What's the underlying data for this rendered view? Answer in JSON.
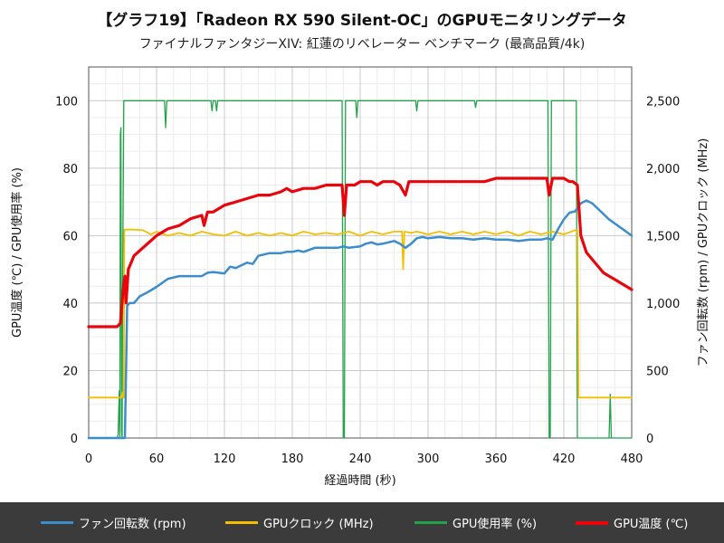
{
  "chart_data": {
    "type": "line",
    "title": "【グラフ19】「Radeon RX 590 Silent-OC」のGPUモニタリングデータ",
    "subtitle": "ファイナルファンタジーXIV: 紅蓮のリベレーター ベンチマーク (最高品質/4k)",
    "xlabel": "経過時間 (秒)",
    "ylabel_left": "GPU温度 (℃) / GPU使用率 (%)",
    "ylabel_right": "ファン回転数 (rpm) / GPUクロック (MHz)",
    "xlim": [
      0,
      480
    ],
    "ylim_left": [
      0,
      110
    ],
    "ylim_right": [
      0,
      2750
    ],
    "x_ticks": [
      0,
      60,
      120,
      180,
      240,
      300,
      360,
      420,
      480
    ],
    "x_tick_labels": [
      "0",
      "60",
      "120",
      "180",
      "240",
      "300",
      "360",
      "420",
      "480"
    ],
    "y_left_ticks": [
      0,
      20,
      40,
      60,
      80,
      100
    ],
    "y_left_tick_labels": [
      "0",
      "20",
      "40",
      "60",
      "80",
      "100"
    ],
    "y_right_ticks": [
      0,
      500,
      1000,
      1500,
      2000,
      2500
    ],
    "y_right_tick_labels": [
      "0",
      "500",
      "1,000",
      "1,500",
      "2,000",
      "2,500"
    ],
    "grid": true,
    "legend_position": "bottom",
    "series": [
      {
        "name": "ファン回転数 (rpm)",
        "axis": "right",
        "color": "#3c8dcc",
        "points": [
          [
            0,
            0
          ],
          [
            32,
            0
          ],
          [
            33,
            500
          ],
          [
            34,
            980
          ],
          [
            36,
            1000
          ],
          [
            40,
            1000
          ],
          [
            45,
            1050
          ],
          [
            52,
            1080
          ],
          [
            60,
            1120
          ],
          [
            70,
            1180
          ],
          [
            80,
            1200
          ],
          [
            100,
            1200
          ],
          [
            105,
            1225
          ],
          [
            110,
            1230
          ],
          [
            120,
            1220
          ],
          [
            125,
            1270
          ],
          [
            130,
            1260
          ],
          [
            140,
            1300
          ],
          [
            145,
            1290
          ],
          [
            150,
            1350
          ],
          [
            160,
            1370
          ],
          [
            170,
            1370
          ],
          [
            175,
            1380
          ],
          [
            180,
            1380
          ],
          [
            185,
            1390
          ],
          [
            190,
            1380
          ],
          [
            200,
            1410
          ],
          [
            210,
            1410
          ],
          [
            220,
            1410
          ],
          [
            225,
            1420
          ],
          [
            230,
            1410
          ],
          [
            240,
            1420
          ],
          [
            245,
            1440
          ],
          [
            250,
            1450
          ],
          [
            255,
            1435
          ],
          [
            260,
            1440
          ],
          [
            270,
            1460
          ],
          [
            275,
            1440
          ],
          [
            280,
            1410
          ],
          [
            285,
            1440
          ],
          [
            290,
            1480
          ],
          [
            295,
            1490
          ],
          [
            300,
            1480
          ],
          [
            310,
            1490
          ],
          [
            320,
            1480
          ],
          [
            330,
            1480
          ],
          [
            340,
            1470
          ],
          [
            350,
            1480
          ],
          [
            360,
            1470
          ],
          [
            370,
            1470
          ],
          [
            380,
            1460
          ],
          [
            390,
            1470
          ],
          [
            400,
            1470
          ],
          [
            405,
            1480
          ],
          [
            410,
            1470
          ],
          [
            415,
            1550
          ],
          [
            420,
            1620
          ],
          [
            425,
            1670
          ],
          [
            430,
            1680
          ],
          [
            435,
            1740
          ],
          [
            440,
            1760
          ],
          [
            445,
            1740
          ],
          [
            450,
            1700
          ],
          [
            455,
            1660
          ],
          [
            460,
            1620
          ],
          [
            465,
            1590
          ],
          [
            470,
            1560
          ],
          [
            475,
            1530
          ],
          [
            480,
            1500
          ]
        ]
      },
      {
        "name": "GPUクロック (MHz)",
        "axis": "right",
        "color": "#f3bf00",
        "points": [
          [
            0,
            300
          ],
          [
            29,
            300
          ],
          [
            30,
            340
          ],
          [
            31,
            300
          ],
          [
            31.5,
            1545
          ],
          [
            40,
            1545
          ],
          [
            48,
            1540
          ],
          [
            55,
            1510
          ],
          [
            60,
            1530
          ],
          [
            70,
            1500
          ],
          [
            80,
            1520
          ],
          [
            90,
            1500
          ],
          [
            100,
            1530
          ],
          [
            110,
            1510
          ],
          [
            120,
            1500
          ],
          [
            130,
            1530
          ],
          [
            140,
            1500
          ],
          [
            150,
            1520
          ],
          [
            160,
            1500
          ],
          [
            170,
            1520
          ],
          [
            180,
            1500
          ],
          [
            190,
            1530
          ],
          [
            200,
            1510
          ],
          [
            210,
            1520
          ],
          [
            220,
            1510
          ],
          [
            230,
            1530
          ],
          [
            240,
            1500
          ],
          [
            250,
            1530
          ],
          [
            260,
            1510
          ],
          [
            270,
            1530
          ],
          [
            277,
            1530
          ],
          [
            278,
            1250
          ],
          [
            279,
            1530
          ],
          [
            285,
            1520
          ],
          [
            290,
            1530
          ],
          [
            300,
            1510
          ],
          [
            310,
            1530
          ],
          [
            320,
            1510
          ],
          [
            330,
            1530
          ],
          [
            340,
            1510
          ],
          [
            350,
            1530
          ],
          [
            360,
            1510
          ],
          [
            370,
            1530
          ],
          [
            380,
            1500
          ],
          [
            390,
            1530
          ],
          [
            400,
            1510
          ],
          [
            410,
            1530
          ],
          [
            420,
            1510
          ],
          [
            430,
            1540
          ],
          [
            432,
            1540
          ],
          [
            433,
            300
          ],
          [
            480,
            300
          ]
        ]
      },
      {
        "name": "GPU使用率 (%)",
        "axis": "left",
        "color": "#22a34a",
        "points": [
          [
            0,
            0
          ],
          [
            25,
            0
          ],
          [
            26,
            1
          ],
          [
            27,
            14
          ],
          [
            27.5,
            0
          ],
          [
            28,
            90
          ],
          [
            28.5,
            92
          ],
          [
            29,
            2
          ],
          [
            29.5,
            0
          ],
          [
            30,
            45
          ],
          [
            31,
            100
          ],
          [
            67,
            100
          ],
          [
            68,
            92
          ],
          [
            69,
            100
          ],
          [
            108,
            100
          ],
          [
            109,
            97
          ],
          [
            110,
            100
          ],
          [
            112,
            100
          ],
          [
            113,
            97
          ],
          [
            114,
            100
          ],
          [
            224,
            100
          ],
          [
            225,
            0
          ],
          [
            226,
            0
          ],
          [
            227,
            100
          ],
          [
            236,
            100
          ],
          [
            237,
            95
          ],
          [
            238,
            100
          ],
          [
            289,
            100
          ],
          [
            290,
            97
          ],
          [
            291,
            100
          ],
          [
            341,
            100
          ],
          [
            342,
            98
          ],
          [
            343,
            100
          ],
          [
            406,
            100
          ],
          [
            407,
            0
          ],
          [
            408,
            0
          ],
          [
            409,
            100
          ],
          [
            431,
            100
          ],
          [
            432,
            0
          ],
          [
            460,
            0
          ],
          [
            461,
            13
          ],
          [
            462,
            0
          ],
          [
            480,
            0
          ]
        ]
      },
      {
        "name": "GPU温度 (℃)",
        "axis": "left",
        "color": "#e8050b",
        "points": [
          [
            0,
            33
          ],
          [
            25,
            33
          ],
          [
            28,
            34
          ],
          [
            31,
            46
          ],
          [
            32,
            48
          ],
          [
            33,
            40
          ],
          [
            35,
            50
          ],
          [
            40,
            54
          ],
          [
            50,
            57
          ],
          [
            60,
            60
          ],
          [
            70,
            62
          ],
          [
            80,
            63
          ],
          [
            90,
            65
          ],
          [
            100,
            66
          ],
          [
            102,
            63
          ],
          [
            105,
            67
          ],
          [
            110,
            67
          ],
          [
            115,
            68
          ],
          [
            120,
            69
          ],
          [
            130,
            70
          ],
          [
            140,
            71
          ],
          [
            150,
            72
          ],
          [
            160,
            72
          ],
          [
            170,
            73
          ],
          [
            175,
            74
          ],
          [
            180,
            73
          ],
          [
            190,
            74
          ],
          [
            200,
            74
          ],
          [
            210,
            75
          ],
          [
            220,
            75
          ],
          [
            224,
            75
          ],
          [
            226,
            66
          ],
          [
            228,
            75
          ],
          [
            235,
            75
          ],
          [
            240,
            76
          ],
          [
            250,
            76
          ],
          [
            255,
            75
          ],
          [
            260,
            76
          ],
          [
            270,
            76
          ],
          [
            275,
            75
          ],
          [
            280,
            72
          ],
          [
            283,
            76
          ],
          [
            290,
            76
          ],
          [
            300,
            76
          ],
          [
            310,
            76
          ],
          [
            320,
            76
          ],
          [
            330,
            76
          ],
          [
            340,
            76
          ],
          [
            350,
            76
          ],
          [
            360,
            77
          ],
          [
            370,
            77
          ],
          [
            380,
            77
          ],
          [
            390,
            77
          ],
          [
            400,
            77
          ],
          [
            405,
            77
          ],
          [
            407,
            72
          ],
          [
            410,
            77
          ],
          [
            420,
            77
          ],
          [
            425,
            76
          ],
          [
            428,
            76
          ],
          [
            432,
            75
          ],
          [
            435,
            60
          ],
          [
            440,
            55
          ],
          [
            445,
            53
          ],
          [
            450,
            51
          ],
          [
            455,
            49
          ],
          [
            460,
            48
          ],
          [
            465,
            47
          ],
          [
            470,
            46
          ],
          [
            475,
            45
          ],
          [
            480,
            44
          ]
        ]
      }
    ]
  }
}
